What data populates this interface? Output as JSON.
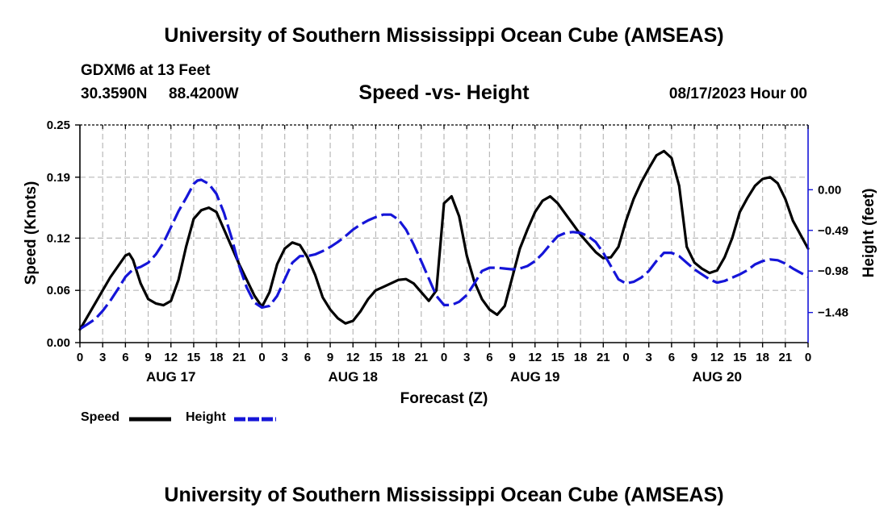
{
  "header": {
    "title": "University of Southern Mississippi Ocean Cube (AMSEAS)",
    "station": "GDXM6 at 13 Feet",
    "latitude": "30.3590N",
    "longitude": "88.4200W",
    "subtitle": "Speed -vs- Height",
    "datetime": "08/17/2023 Hour 00"
  },
  "footer": {
    "title": "University of Southern Mississippi Ocean Cube (AMSEAS)"
  },
  "legend": {
    "speed_label": "Speed",
    "height_label": "Height"
  },
  "chart_data": {
    "type": "line",
    "title": "Speed -vs- Height",
    "xlabel": "Forecast (Z)",
    "ylabel": "Speed (Knots)",
    "y2label": "Height (feet)",
    "xlim": [
      0,
      96
    ],
    "ylim": [
      0,
      0.25
    ],
    "y2lim": [
      -1.843,
      0.781
    ],
    "x_ticks": [
      0,
      3,
      6,
      9,
      12,
      15,
      18,
      21,
      24,
      27,
      30,
      33,
      36,
      39,
      42,
      45,
      48,
      51,
      54,
      57,
      60,
      63,
      66,
      69,
      72,
      75,
      78,
      81,
      84,
      87,
      90,
      93,
      96
    ],
    "x_tick_labels": [
      "0",
      "3",
      "6",
      "9",
      "12",
      "15",
      "18",
      "21",
      "0",
      "3",
      "6",
      "9",
      "12",
      "15",
      "18",
      "21",
      "0",
      "3",
      "6",
      "9",
      "12",
      "15",
      "18",
      "21",
      "0",
      "3",
      "6",
      "9",
      "12",
      "15",
      "18",
      "21",
      "0"
    ],
    "y_ticks": [
      0,
      0.06,
      0.12,
      0.19,
      0.25
    ],
    "y_tick_labels": [
      "0.00",
      "0.06",
      "0.12",
      "0.19",
      "0.25"
    ],
    "y2_ticks": [
      0,
      -0.49,
      -0.98,
      -1.48
    ],
    "y2_tick_labels": [
      "0.00",
      "−0.49",
      "−0.98",
      "−1.48"
    ],
    "day_labels": [
      {
        "x": 12,
        "label": "AUG 17"
      },
      {
        "x": 36,
        "label": "AUG 18"
      },
      {
        "x": 60,
        "label": "AUG 19"
      },
      {
        "x": 84,
        "label": "AUG 20"
      }
    ],
    "grid": true,
    "series": [
      {
        "name": "Speed",
        "axis": "left",
        "color": "#000000",
        "dash": "solid",
        "x": [
          0,
          2,
          4,
          6,
          6.5,
          7,
          8,
          9,
          10,
          11,
          12,
          13,
          14,
          15,
          16,
          17,
          18,
          19,
          20,
          21,
          22,
          23,
          24,
          25,
          26,
          27,
          28,
          29,
          30,
          31,
          32,
          33,
          34,
          35,
          36,
          37,
          38,
          39,
          40,
          41,
          42,
          43,
          44,
          45,
          46,
          47,
          48,
          49,
          50,
          51,
          52,
          53,
          54,
          55,
          56,
          57,
          58,
          59,
          60,
          61,
          62,
          63,
          64,
          65,
          66,
          67,
          68,
          69,
          70,
          71,
          72,
          73,
          74,
          75,
          76,
          77,
          78,
          79,
          80,
          81,
          82,
          83,
          84,
          85,
          86,
          87,
          88,
          89,
          90,
          91,
          92,
          93,
          94,
          95,
          96
        ],
        "values": [
          0.015,
          0.045,
          0.075,
          0.1,
          0.102,
          0.095,
          0.068,
          0.05,
          0.045,
          0.043,
          0.048,
          0.072,
          0.11,
          0.142,
          0.152,
          0.155,
          0.15,
          0.13,
          0.11,
          0.09,
          0.072,
          0.054,
          0.041,
          0.058,
          0.09,
          0.108,
          0.115,
          0.112,
          0.098,
          0.078,
          0.052,
          0.038,
          0.028,
          0.022,
          0.025,
          0.036,
          0.05,
          0.06,
          0.064,
          0.068,
          0.072,
          0.073,
          0.068,
          0.058,
          0.048,
          0.06,
          0.16,
          0.168,
          0.145,
          0.1,
          0.07,
          0.05,
          0.038,
          0.032,
          0.042,
          0.075,
          0.108,
          0.13,
          0.15,
          0.163,
          0.168,
          0.16,
          0.148,
          0.136,
          0.124,
          0.114,
          0.104,
          0.097,
          0.098,
          0.11,
          0.14,
          0.165,
          0.184,
          0.2,
          0.215,
          0.22,
          0.212,
          0.18,
          0.11,
          0.092,
          0.085,
          0.08,
          0.083,
          0.098,
          0.12,
          0.15,
          0.166,
          0.18,
          0.188,
          0.19,
          0.183,
          0.165,
          0.14,
          0.124,
          0.108
        ]
      },
      {
        "name": "Height",
        "axis": "right",
        "color": "#1515d8",
        "dash": "dashed",
        "x": [
          0,
          1,
          2,
          3,
          4,
          5,
          6,
          7,
          8,
          9,
          10,
          11,
          12,
          13,
          14,
          15,
          15.5,
          16,
          17,
          18,
          19,
          20,
          21,
          22,
          23,
          24,
          25,
          26,
          27,
          28,
          29,
          30,
          31,
          32,
          33,
          34,
          35,
          36,
          37,
          38,
          39,
          40,
          41,
          42,
          43,
          44,
          45,
          46,
          47,
          48,
          49,
          50,
          51,
          52,
          53,
          54,
          55,
          56,
          57,
          58,
          59,
          60,
          61,
          62,
          63,
          64,
          65,
          66,
          67,
          68,
          69,
          70,
          71,
          72,
          73,
          74,
          75,
          76,
          77,
          78,
          79,
          80,
          81,
          82,
          83,
          84,
          85,
          86,
          87,
          88,
          89,
          90,
          91,
          92,
          93,
          94,
          95,
          96
        ],
        "values": [
          -1.68,
          -1.62,
          -1.56,
          -1.46,
          -1.34,
          -1.2,
          -1.05,
          -0.96,
          -0.93,
          -0.88,
          -0.78,
          -0.64,
          -0.45,
          -0.26,
          -0.1,
          0.07,
          0.11,
          0.12,
          0.07,
          -0.05,
          -0.28,
          -0.58,
          -0.92,
          -1.18,
          -1.36,
          -1.42,
          -1.4,
          -1.28,
          -1.08,
          -0.88,
          -0.8,
          -0.8,
          -0.78,
          -0.74,
          -0.69,
          -0.63,
          -0.56,
          -0.48,
          -0.42,
          -0.37,
          -0.33,
          -0.3,
          -0.3,
          -0.36,
          -0.48,
          -0.66,
          -0.86,
          -1.07,
          -1.28,
          -1.39,
          -1.39,
          -1.35,
          -1.27,
          -1.13,
          -0.98,
          -0.94,
          -0.94,
          -0.95,
          -0.96,
          -0.95,
          -0.92,
          -0.86,
          -0.77,
          -0.66,
          -0.56,
          -0.52,
          -0.51,
          -0.52,
          -0.56,
          -0.63,
          -0.76,
          -0.92,
          -1.08,
          -1.13,
          -1.11,
          -1.06,
          -0.98,
          -0.86,
          -0.76,
          -0.76,
          -0.8,
          -0.88,
          -0.96,
          -1.02,
          -1.08,
          -1.12,
          -1.1,
          -1.06,
          -1.02,
          -0.97,
          -0.9,
          -0.86,
          -0.84,
          -0.85,
          -0.89,
          -0.95,
          -1.0,
          -1.05
        ]
      }
    ]
  }
}
